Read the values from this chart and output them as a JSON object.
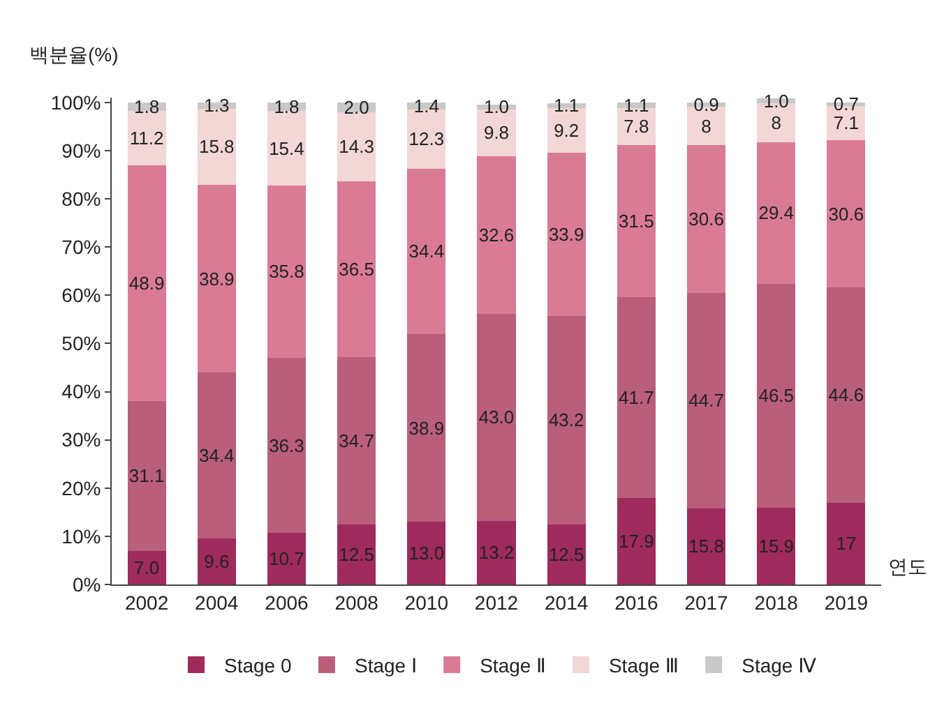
{
  "chart_data": {
    "type": "bar",
    "stacked": true,
    "ylabel": "백분율(%)",
    "xlabel": "연도",
    "categories": [
      "2002",
      "2004",
      "2006",
      "2008",
      "2010",
      "2012",
      "2014",
      "2016",
      "2017",
      "2018",
      "2019"
    ],
    "series": [
      {
        "name": "Stage 0",
        "color": "#9e2b5b",
        "values": [
          7.0,
          9.6,
          10.7,
          12.5,
          13.0,
          13.2,
          12.5,
          17.9,
          15.8,
          15.9,
          17
        ],
        "value_labels": [
          "7.0",
          "9.6",
          "10.7",
          "12.5",
          "13.0",
          "13.2",
          "12.5",
          "17.9",
          "15.8",
          "15.9",
          "17"
        ]
      },
      {
        "name": "Stage Ⅰ",
        "color": "#b95e7b",
        "values": [
          31.1,
          34.4,
          36.3,
          34.7,
          38.9,
          43.0,
          43.2,
          41.7,
          44.7,
          46.5,
          44.6
        ],
        "value_labels": [
          "31.1",
          "34.4",
          "36.3",
          "34.7",
          "38.9",
          "43.0",
          "43.2",
          "41.7",
          "44.7",
          "46.5",
          "44.6"
        ]
      },
      {
        "name": "Stage Ⅱ",
        "color": "#da7b96",
        "values": [
          48.9,
          38.9,
          35.8,
          36.5,
          34.4,
          32.6,
          33.9,
          31.5,
          30.6,
          29.4,
          30.6
        ],
        "value_labels": [
          "48.9",
          "38.9",
          "35.8",
          "36.5",
          "34.4",
          "32.6",
          "33.9",
          "31.5",
          "30.6",
          "29.4",
          "30.6"
        ]
      },
      {
        "name": "Stage Ⅲ",
        "color": "#f3d6d6",
        "values": [
          11.2,
          15.8,
          15.4,
          14.3,
          12.3,
          9.8,
          9.2,
          7.8,
          8,
          8,
          7.1
        ],
        "value_labels": [
          "11.2",
          "15.8",
          "15.4",
          "14.3",
          "12.3",
          "9.8",
          "9.2",
          "7.8",
          "8",
          "8",
          "7.1"
        ]
      },
      {
        "name": "Stage Ⅳ",
        "color": "#c9c9c9",
        "values": [
          1.8,
          1.3,
          1.8,
          2.0,
          1.4,
          1.0,
          1.1,
          1.1,
          0.9,
          1.0,
          0.7
        ],
        "value_labels": [
          "1.8",
          "1.3",
          "1.8",
          "2.0",
          "1.4",
          "1.0",
          "1.1",
          "1.1",
          "0.9",
          "1.0",
          "0.7"
        ]
      }
    ],
    "ylim": [
      0,
      101
    ],
    "yticks": [
      {
        "value": 0,
        "label": "0%"
      },
      {
        "value": 10,
        "label": "10%"
      },
      {
        "value": 20,
        "label": "20%"
      },
      {
        "value": 30,
        "label": "30%"
      },
      {
        "value": 40,
        "label": "40%"
      },
      {
        "value": 50,
        "label": "50%"
      },
      {
        "value": 60,
        "label": "60%"
      },
      {
        "value": 70,
        "label": "70%"
      },
      {
        "value": 80,
        "label": "80%"
      },
      {
        "value": 90,
        "label": "90%"
      },
      {
        "value": 100,
        "label": "100%"
      }
    ],
    "grid": false,
    "legend": "bottom"
  }
}
